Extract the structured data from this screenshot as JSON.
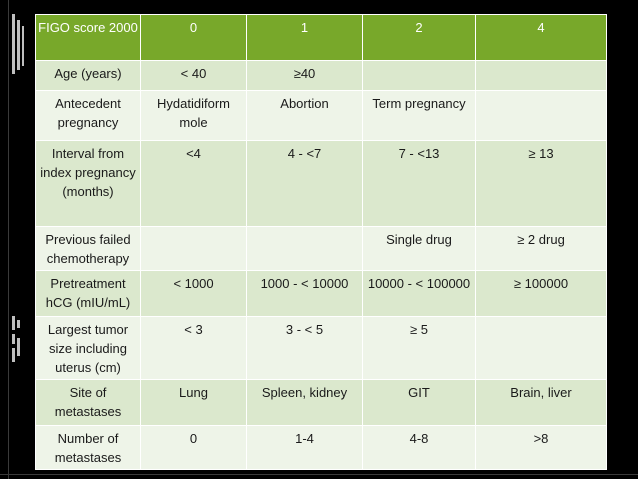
{
  "table": {
    "header": [
      "FIGO score 2000",
      "0",
      "1",
      "2",
      "4"
    ],
    "rows": [
      [
        "Age (years)",
        "< 40",
        "≥40",
        "",
        ""
      ],
      [
        "Antecedent pregnancy",
        "Hydatidiform mole",
        "Abortion",
        "Term pregnancy",
        ""
      ],
      [
        "Interval from index pregnancy (months)",
        "<4",
        "4 - <7",
        "7 - <13",
        "≥ 13"
      ],
      [
        "Previous failed chemotherapy",
        "",
        "",
        "Single drug",
        "≥ 2 drug"
      ],
      [
        "Pretreatment hCG (mIU/mL)",
        "< 1000",
        "1000 - < 10000",
        "10000 - < 100000",
        "≥ 100000"
      ],
      [
        "Largest tumor size including uterus (cm)",
        "< 3",
        "3 - < 5",
        "≥ 5",
        ""
      ],
      [
        "Site of metastases",
        "Lung",
        "Spleen, kidney",
        "GIT",
        "Brain, liver"
      ],
      [
        "Number of metastases",
        "0",
        "1-4",
        "4-8",
        ">8"
      ]
    ]
  },
  "colors": {
    "header_bg": "#78a82a",
    "row_odd_bg": "#dbe8cd",
    "row_even_bg": "#eef4e8",
    "slide_bg": "#000000"
  }
}
